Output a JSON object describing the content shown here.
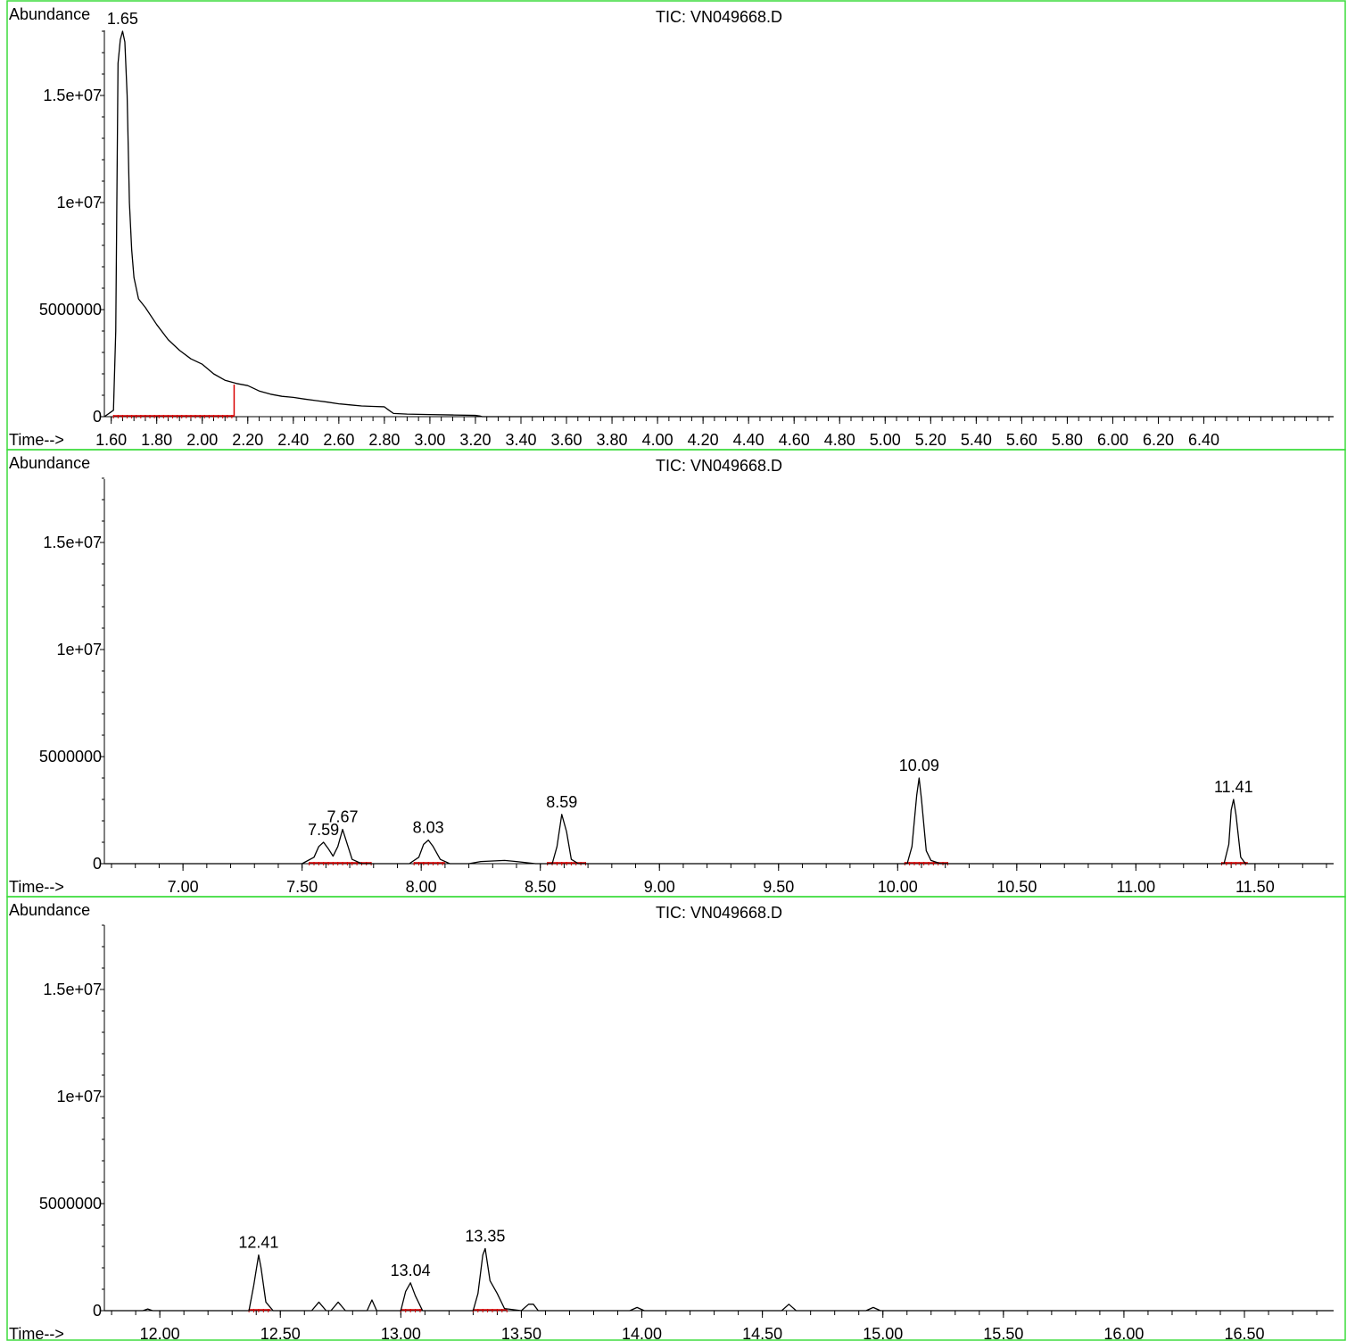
{
  "colors": {
    "frame": "#3cdc3c",
    "trace": "#000000",
    "baseline": "#d80000",
    "axis": "#000000",
    "background": "#ffffff"
  },
  "chart_data": [
    {
      "type": "line",
      "title": "TIC: VN049668.D",
      "ylabel": "Abundance",
      "xlabel": "Time-->",
      "xlim": [
        1.57,
        6.97
      ],
      "ylim": [
        0,
        18000000
      ],
      "x_ticks": [
        "1.60",
        "1.80",
        "2.00",
        "2.20",
        "2.40",
        "2.60",
        "2.80",
        "3.00",
        "3.20",
        "3.40",
        "3.60",
        "3.80",
        "4.00",
        "4.20",
        "4.40",
        "4.60",
        "4.80",
        "5.00",
        "5.20",
        "5.40",
        "5.60",
        "5.80",
        "6.00",
        "6.20",
        "6.40"
      ],
      "x_minor_step": 0.05,
      "y_ticks": [
        "0",
        "5000000",
        "1e+07",
        "1.5e+07"
      ],
      "grid": false,
      "peak_labels": [
        {
          "x": 1.65,
          "y": 18000000,
          "label": "1.65"
        }
      ],
      "baselines": [
        {
          "x0": 1.61,
          "x1": 2.14,
          "drop_at": 2.14,
          "drop_y": 1500000
        }
      ],
      "series": [
        {
          "x": [
            1.57,
            1.61,
            1.62,
            1.63,
            1.64,
            1.65,
            1.66,
            1.67,
            1.68,
            1.69,
            1.7,
            1.72,
            1.75,
            1.8,
            1.85,
            1.9,
            1.95,
            2.0,
            2.05,
            2.1,
            2.15,
            2.2,
            2.25,
            2.3,
            2.35,
            2.4,
            2.45,
            2.5,
            2.55,
            2.6,
            2.65,
            2.7,
            2.75,
            2.8,
            2.82,
            2.84,
            2.9,
            3.0,
            3.1,
            3.2,
            3.22,
            3.23,
            3.4,
            4.0,
            5.0,
            6.0,
            6.97
          ],
          "y": [
            0,
            300000,
            4000000,
            16500000,
            17600000,
            18000000,
            17500000,
            15000000,
            10000000,
            7800000,
            6500000,
            5500000,
            5100000,
            4300000,
            3600000,
            3100000,
            2700000,
            2450000,
            2000000,
            1700000,
            1550000,
            1450000,
            1200000,
            1050000,
            950000,
            900000,
            820000,
            750000,
            680000,
            600000,
            550000,
            500000,
            480000,
            460000,
            300000,
            150000,
            120000,
            100000,
            80000,
            60000,
            30000,
            0,
            0,
            0,
            0,
            0,
            0
          ]
        }
      ]
    },
    {
      "type": "line",
      "title": "TIC: VN049668.D",
      "ylabel": "Abundance",
      "xlabel": "Time-->",
      "xlim": [
        6.67,
        11.83
      ],
      "ylim": [
        0,
        18000000
      ],
      "x_ticks": [
        "7.00",
        "7.50",
        "8.00",
        "8.50",
        "9.00",
        "9.50",
        "10.00",
        "10.50",
        "11.00",
        "11.50"
      ],
      "x_minor_step": 0.1,
      "y_ticks": [
        "0",
        "5000000",
        "1e+07",
        "1.5e+07"
      ],
      "grid": false,
      "peak_labels": [
        {
          "x": 7.59,
          "y": 1000000,
          "label": "7.59"
        },
        {
          "x": 7.67,
          "y": 1600000,
          "label": "7.67"
        },
        {
          "x": 8.03,
          "y": 1100000,
          "label": "8.03"
        },
        {
          "x": 8.59,
          "y": 2300000,
          "label": "8.59"
        },
        {
          "x": 10.09,
          "y": 4000000,
          "label": "10.09"
        },
        {
          "x": 11.41,
          "y": 3000000,
          "label": "11.41"
        }
      ],
      "baselines": [
        {
          "x0": 7.53,
          "x1": 7.79
        },
        {
          "x0": 7.97,
          "x1": 8.1
        },
        {
          "x0": 8.53,
          "x1": 8.69
        },
        {
          "x0": 10.03,
          "x1": 10.21
        },
        {
          "x0": 11.36,
          "x1": 11.47
        }
      ],
      "series": [
        {
          "x": [
            6.67,
            7.5,
            7.55,
            7.57,
            7.59,
            7.61,
            7.63,
            7.65,
            7.67,
            7.69,
            7.71,
            7.75,
            7.95,
            7.99,
            8.01,
            8.03,
            8.05,
            8.08,
            8.12,
            8.2,
            8.25,
            8.35,
            8.4,
            8.48,
            8.55,
            8.57,
            8.59,
            8.61,
            8.63,
            8.66,
            9.0,
            10.04,
            10.06,
            10.08,
            10.09,
            10.1,
            10.12,
            10.14,
            10.18,
            10.3,
            11.37,
            11.39,
            11.4,
            11.41,
            11.42,
            11.44,
            11.46,
            11.83
          ],
          "y": [
            0,
            0,
            300000,
            800000,
            1000000,
            700000,
            350000,
            800000,
            1600000,
            900000,
            200000,
            0,
            0,
            300000,
            900000,
            1100000,
            800000,
            200000,
            0,
            0,
            100000,
            150000,
            100000,
            0,
            0,
            800000,
            2300000,
            1500000,
            200000,
            0,
            0,
            0,
            800000,
            3200000,
            4000000,
            3000000,
            600000,
            150000,
            0,
            0,
            0,
            900000,
            2500000,
            3000000,
            2300000,
            300000,
            0,
            0
          ]
        }
      ]
    },
    {
      "type": "line",
      "title": "TIC: VN049668.D",
      "ylabel": "Abundance",
      "xlabel": "Time-->",
      "xlim": [
        11.77,
        16.87
      ],
      "ylim": [
        0,
        18000000
      ],
      "x_ticks": [
        "12.00",
        "12.50",
        "13.00",
        "13.50",
        "14.00",
        "14.50",
        "15.00",
        "15.50",
        "16.00",
        "16.50"
      ],
      "x_minor_step": 0.1,
      "y_ticks": [
        "0",
        "5000000",
        "1e+07",
        "1.5e+07"
      ],
      "grid": false,
      "peak_labels": [
        {
          "x": 12.41,
          "y": 2600000,
          "label": "12.41"
        },
        {
          "x": 13.04,
          "y": 1300000,
          "label": "13.04"
        },
        {
          "x": 13.35,
          "y": 2900000,
          "label": "13.35"
        }
      ],
      "baselines": [
        {
          "x0": 12.37,
          "x1": 12.46
        },
        {
          "x0": 13.0,
          "x1": 13.09
        },
        {
          "x0": 13.3,
          "x1": 13.44
        }
      ],
      "series": [
        {
          "x": [
            11.77,
            11.93,
            11.95,
            11.97,
            12.37,
            12.39,
            12.41,
            12.42,
            12.44,
            12.47,
            12.63,
            12.66,
            12.69,
            12.71,
            12.74,
            12.77,
            12.86,
            12.88,
            12.9,
            13.0,
            13.02,
            13.04,
            13.06,
            13.09,
            13.3,
            13.32,
            13.34,
            13.35,
            13.37,
            13.4,
            13.43,
            13.5,
            13.53,
            13.55,
            13.57,
            13.95,
            13.98,
            14.01,
            14.58,
            14.61,
            14.64,
            14.93,
            14.96,
            14.99,
            16.87
          ],
          "y": [
            0,
            0,
            80000,
            0,
            0,
            1200000,
            2600000,
            2000000,
            400000,
            0,
            0,
            400000,
            0,
            0,
            400000,
            0,
            0,
            500000,
            0,
            0,
            900000,
            1300000,
            700000,
            0,
            0,
            800000,
            2600000,
            2900000,
            1400000,
            800000,
            100000,
            0,
            300000,
            300000,
            0,
            0,
            150000,
            0,
            0,
            300000,
            0,
            0,
            150000,
            0,
            0
          ]
        }
      ]
    }
  ]
}
